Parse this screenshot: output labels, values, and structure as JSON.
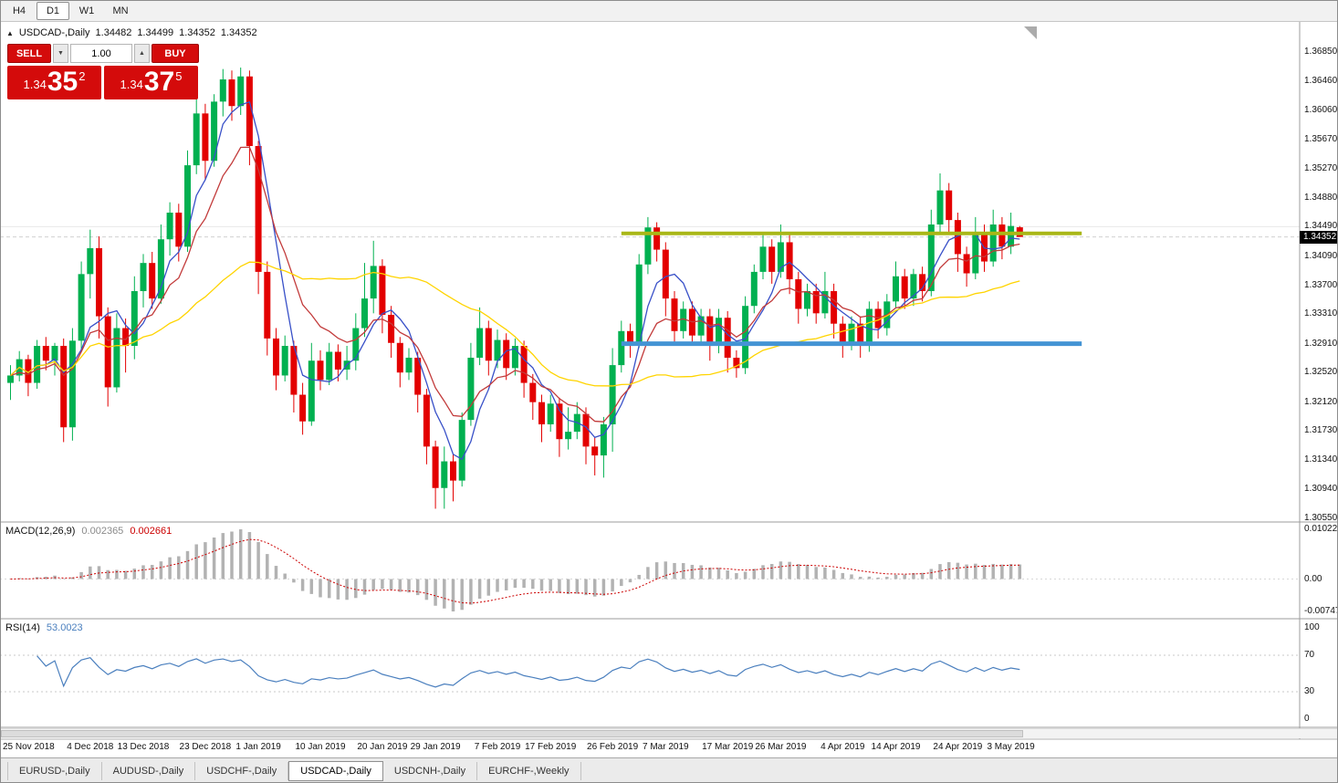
{
  "toolbar": {
    "timeframes": [
      {
        "label": "H4",
        "active": false
      },
      {
        "label": "D1",
        "active": true
      },
      {
        "label": "W1",
        "active": false
      },
      {
        "label": "MN",
        "active": false
      }
    ]
  },
  "chart": {
    "symbol_header": {
      "collapse_icon": "▲",
      "title": "USDCAD-,Daily",
      "ohlc": [
        "1.34482",
        "1.34499",
        "1.34352",
        "1.34352"
      ]
    },
    "one_click": {
      "sell_label": "SELL",
      "buy_label": "BUY",
      "volume": "1.00",
      "decrease_icon": "▼",
      "increase_icon": "▲",
      "sell_price": {
        "big_figure": "1.34",
        "pips": "35",
        "pipette": "2"
      },
      "buy_price": {
        "big_figure": "1.34",
        "pips": "37",
        "pipette": "5"
      },
      "panel_color": "#d40b0b"
    },
    "price_scale": {
      "max": 1.3685,
      "min": 1.3055,
      "current": "1.34352",
      "current_value": 1.34352,
      "labels": [
        "1.36850",
        "1.36460",
        "1.36060",
        "1.35670",
        "1.35270",
        "1.34880",
        "1.34490",
        "1.34090",
        "1.33700",
        "1.33310",
        "1.32910",
        "1.32520",
        "1.32120",
        "1.31730",
        "1.31340",
        "1.30940",
        "1.30550"
      ]
    }
  },
  "chart_data": {
    "type": "candlestick",
    "symbol": "USDCAD",
    "timeframe": "Daily",
    "up_color": "#00b050",
    "down_color": "#e30000",
    "grid_line_price": 1.3449,
    "candles": [
      [
        1.3238,
        1.3262,
        1.3215,
        1.3248
      ],
      [
        1.3248,
        1.3281,
        1.324,
        1.327
      ],
      [
        1.327,
        1.3276,
        1.322,
        1.3238
      ],
      [
        1.3238,
        1.3296,
        1.323,
        1.3288
      ],
      [
        1.3288,
        1.33,
        1.3255,
        1.3268
      ],
      [
        1.3268,
        1.3292,
        1.3248,
        1.3288
      ],
      [
        1.3288,
        1.3298,
        1.3158,
        1.3178
      ],
      [
        1.3178,
        1.3312,
        1.316,
        1.3295
      ],
      [
        1.3295,
        1.3402,
        1.328,
        1.3385
      ],
      [
        1.3385,
        1.3445,
        1.3352,
        1.342
      ],
      [
        1.342,
        1.3436,
        1.3298,
        1.3328
      ],
      [
        1.3328,
        1.334,
        1.3206,
        1.3232
      ],
      [
        1.3232,
        1.3332,
        1.3225,
        1.3312
      ],
      [
        1.3312,
        1.3325,
        1.3252,
        1.3288
      ],
      [
        1.3288,
        1.3382,
        1.327,
        1.3362
      ],
      [
        1.3362,
        1.3412,
        1.334,
        1.34
      ],
      [
        1.34,
        1.3415,
        1.3338,
        1.3352
      ],
      [
        1.3352,
        1.3452,
        1.3345,
        1.3432
      ],
      [
        1.3432,
        1.3482,
        1.341,
        1.3468
      ],
      [
        1.3468,
        1.348,
        1.3402,
        1.3422
      ],
      [
        1.3422,
        1.3552,
        1.3415,
        1.3532
      ],
      [
        1.3532,
        1.3622,
        1.352,
        1.3602
      ],
      [
        1.3602,
        1.3615,
        1.3512,
        1.3538
      ],
      [
        1.3538,
        1.3628,
        1.353,
        1.3618
      ],
      [
        1.3618,
        1.3662,
        1.3598,
        1.3648
      ],
      [
        1.3648,
        1.366,
        1.3592,
        1.3612
      ],
      [
        1.3612,
        1.3664,
        1.36,
        1.3652
      ],
      [
        1.3652,
        1.366,
        1.3532,
        1.3558
      ],
      [
        1.3558,
        1.3565,
        1.3358,
        1.3388
      ],
      [
        1.3388,
        1.3402,
        1.3275,
        1.3298
      ],
      [
        1.3298,
        1.3312,
        1.3228,
        1.3248
      ],
      [
        1.3248,
        1.3302,
        1.324,
        1.3288
      ],
      [
        1.3288,
        1.3295,
        1.3198,
        1.3222
      ],
      [
        1.3222,
        1.3238,
        1.3168,
        1.3186
      ],
      [
        1.3186,
        1.3292,
        1.318,
        1.3268
      ],
      [
        1.3268,
        1.3282,
        1.3228,
        1.3242
      ],
      [
        1.3242,
        1.3292,
        1.3235,
        1.328
      ],
      [
        1.328,
        1.329,
        1.324,
        1.3256
      ],
      [
        1.3256,
        1.3288,
        1.3242,
        1.3268
      ],
      [
        1.3268,
        1.3332,
        1.3255,
        1.3312
      ],
      [
        1.3312,
        1.34,
        1.33,
        1.3352
      ],
      [
        1.3352,
        1.343,
        1.3332,
        1.3396
      ],
      [
        1.3396,
        1.3405,
        1.3305,
        1.333
      ],
      [
        1.333,
        1.3342,
        1.3272,
        1.3292
      ],
      [
        1.3292,
        1.33,
        1.3232,
        1.3252
      ],
      [
        1.3252,
        1.3285,
        1.3242,
        1.3272
      ],
      [
        1.3272,
        1.328,
        1.3198,
        1.3222
      ],
      [
        1.3222,
        1.323,
        1.3128,
        1.3152
      ],
      [
        1.3152,
        1.316,
        1.3068,
        1.3096
      ],
      [
        1.3096,
        1.3152,
        1.3068,
        1.3132
      ],
      [
        1.3132,
        1.3142,
        1.3078,
        1.3106
      ],
      [
        1.3106,
        1.3198,
        1.3098,
        1.3188
      ],
      [
        1.3188,
        1.3292,
        1.318,
        1.3272
      ],
      [
        1.3272,
        1.334,
        1.3262,
        1.3312
      ],
      [
        1.3312,
        1.3322,
        1.3248,
        1.3268
      ],
      [
        1.3268,
        1.331,
        1.3258,
        1.3296
      ],
      [
        1.3296,
        1.3305,
        1.3242,
        1.3258
      ],
      [
        1.3258,
        1.3298,
        1.3248,
        1.3288
      ],
      [
        1.3288,
        1.3295,
        1.3218,
        1.3238
      ],
      [
        1.3238,
        1.325,
        1.3188,
        1.3212
      ],
      [
        1.3212,
        1.3222,
        1.3158,
        1.3182
      ],
      [
        1.3182,
        1.3222,
        1.3172,
        1.321
      ],
      [
        1.321,
        1.3218,
        1.3138,
        1.3162
      ],
      [
        1.3162,
        1.3205,
        1.3148,
        1.3172
      ],
      [
        1.3172,
        1.3212,
        1.3162,
        1.3196
      ],
      [
        1.3196,
        1.3205,
        1.3128,
        1.3152
      ],
      [
        1.3152,
        1.3165,
        1.3113,
        1.314
      ],
      [
        1.314,
        1.3192,
        1.311,
        1.3182
      ],
      [
        1.3182,
        1.3285,
        1.3145,
        1.3262
      ],
      [
        1.3262,
        1.3322,
        1.3252,
        1.3308
      ],
      [
        1.3308,
        1.3318,
        1.3272,
        1.3292
      ],
      [
        1.3292,
        1.3412,
        1.3285,
        1.3398
      ],
      [
        1.3398,
        1.3462,
        1.3385,
        1.3448
      ],
      [
        1.3448,
        1.3455,
        1.3402,
        1.3418
      ],
      [
        1.3418,
        1.3428,
        1.3328,
        1.3352
      ],
      [
        1.3352,
        1.3362,
        1.3288,
        1.3308
      ],
      [
        1.3308,
        1.3348,
        1.3298,
        1.3338
      ],
      [
        1.3338,
        1.3348,
        1.3288,
        1.3302
      ],
      [
        1.3302,
        1.3338,
        1.3292,
        1.3328
      ],
      [
        1.3328,
        1.3338,
        1.3268,
        1.3288
      ],
      [
        1.3288,
        1.3338,
        1.3278,
        1.3326
      ],
      [
        1.3326,
        1.3335,
        1.3252,
        1.3272
      ],
      [
        1.3272,
        1.3282,
        1.3245,
        1.3258
      ],
      [
        1.3258,
        1.3355,
        1.325,
        1.3342
      ],
      [
        1.3342,
        1.3398,
        1.3332,
        1.3388
      ],
      [
        1.3388,
        1.3438,
        1.3378,
        1.3422
      ],
      [
        1.3422,
        1.3432,
        1.3372,
        1.3388
      ],
      [
        1.3388,
        1.3452,
        1.338,
        1.3428
      ],
      [
        1.3428,
        1.3438,
        1.3358,
        1.3378
      ],
      [
        1.3378,
        1.3388,
        1.3318,
        1.3338
      ],
      [
        1.3338,
        1.3372,
        1.3328,
        1.3362
      ],
      [
        1.3362,
        1.3372,
        1.3318,
        1.3332
      ],
      [
        1.3332,
        1.3388,
        1.3325,
        1.3362
      ],
      [
        1.3362,
        1.3372,
        1.3298,
        1.3318
      ],
      [
        1.3318,
        1.3328,
        1.3272,
        1.3292
      ],
      [
        1.3292,
        1.3328,
        1.3282,
        1.3318
      ],
      [
        1.3318,
        1.3328,
        1.3272,
        1.3288
      ],
      [
        1.3288,
        1.3348,
        1.328,
        1.3338
      ],
      [
        1.3338,
        1.3348,
        1.3298,
        1.3312
      ],
      [
        1.3312,
        1.3358,
        1.3302,
        1.3348
      ],
      [
        1.3348,
        1.3402,
        1.334,
        1.3382
      ],
      [
        1.3382,
        1.3392,
        1.3338,
        1.3352
      ],
      [
        1.3352,
        1.3392,
        1.3342,
        1.3385
      ],
      [
        1.3385,
        1.3395,
        1.3348,
        1.3362
      ],
      [
        1.3362,
        1.3472,
        1.3355,
        1.3452
      ],
      [
        1.3452,
        1.3521,
        1.3442,
        1.3498
      ],
      [
        1.3498,
        1.3508,
        1.3438,
        1.3458
      ],
      [
        1.3458,
        1.3468,
        1.3388,
        1.3412
      ],
      [
        1.3412,
        1.3422,
        1.3368,
        1.3386
      ],
      [
        1.3386,
        1.3462,
        1.3378,
        1.3442
      ],
      [
        1.3442,
        1.3452,
        1.3388,
        1.3402
      ],
      [
        1.3402,
        1.3472,
        1.3395,
        1.3452
      ],
      [
        1.3452,
        1.3462,
        1.3405,
        1.3422
      ],
      [
        1.3422,
        1.3468,
        1.3412,
        1.345
      ],
      [
        1.34482,
        1.34499,
        1.34352,
        1.34352
      ]
    ],
    "moving_averages": [
      {
        "name": "ma-fast-blue",
        "type": "sma",
        "period": 5,
        "color": "#3850c8"
      },
      {
        "name": "ma-mid-red",
        "type": "ema",
        "period": 10,
        "color": "#c23a3a"
      },
      {
        "name": "ma-slow-yellow",
        "type": "sma",
        "period": 34,
        "color": "#ffd400"
      }
    ],
    "hlines": [
      {
        "name": "resistance-line",
        "price": 1.344,
        "from_index": 69,
        "to_index": 121,
        "color": "#a9b717",
        "stroke_width": 4
      },
      {
        "name": "support-line",
        "price": 1.3291,
        "from_index": 69,
        "to_index": 121,
        "color": "#4494d4",
        "stroke_width": 5
      }
    ],
    "x_labels": [
      {
        "text": "25 Nov 2018",
        "index": 2
      },
      {
        "text": "4 Dec 2018",
        "index": 9
      },
      {
        "text": "13 Dec 2018",
        "index": 15
      },
      {
        "text": "23 Dec 2018",
        "index": 22
      },
      {
        "text": "1 Jan 2019",
        "index": 28
      },
      {
        "text": "10 Jan 2019",
        "index": 35
      },
      {
        "text": "20 Jan 2019",
        "index": 42
      },
      {
        "text": "29 Jan 2019",
        "index": 48
      },
      {
        "text": "7 Feb 2019",
        "index": 55
      },
      {
        "text": "17 Feb 2019",
        "index": 61
      },
      {
        "text": "26 Feb 2019",
        "index": 68
      },
      {
        "text": "7 Mar 2019",
        "index": 74
      },
      {
        "text": "17 Mar 2019",
        "index": 81
      },
      {
        "text": "26 Mar 2019",
        "index": 87
      },
      {
        "text": "4 Apr 2019",
        "index": 94
      },
      {
        "text": "14 Apr 2019",
        "index": 100
      },
      {
        "text": "24 Apr 2019",
        "index": 107
      },
      {
        "text": "3 May 2019",
        "index": 113
      }
    ]
  },
  "macd": {
    "label": "MACD(12,26,9)",
    "value_main": "0.002365",
    "value_signal": "0.002661",
    "fast": 12,
    "slow": 26,
    "signal_period": 9,
    "hist_color": "#b2b2b2",
    "signal_color": "#cc0000",
    "scale": {
      "max": "0.010229",
      "zero": "0.00",
      "min": "-0.007477"
    }
  },
  "rsi": {
    "label": "RSI(14)",
    "value": "53.0023",
    "period": 14,
    "color": "#4a7fbe",
    "levels": [
      70,
      30
    ],
    "scale_labels": [
      "100",
      "70",
      "30",
      "0"
    ]
  },
  "bottom_tabs": [
    {
      "label": "EURUSD-,Daily",
      "active": false
    },
    {
      "label": "AUDUSD-,Daily",
      "active": false
    },
    {
      "label": "USDCHF-,Daily",
      "active": false
    },
    {
      "label": "USDCAD-,Daily",
      "active": true
    },
    {
      "label": "USDCNH-,Daily",
      "active": false
    },
    {
      "label": "EURCHF-,Weekly",
      "active": false
    }
  ]
}
